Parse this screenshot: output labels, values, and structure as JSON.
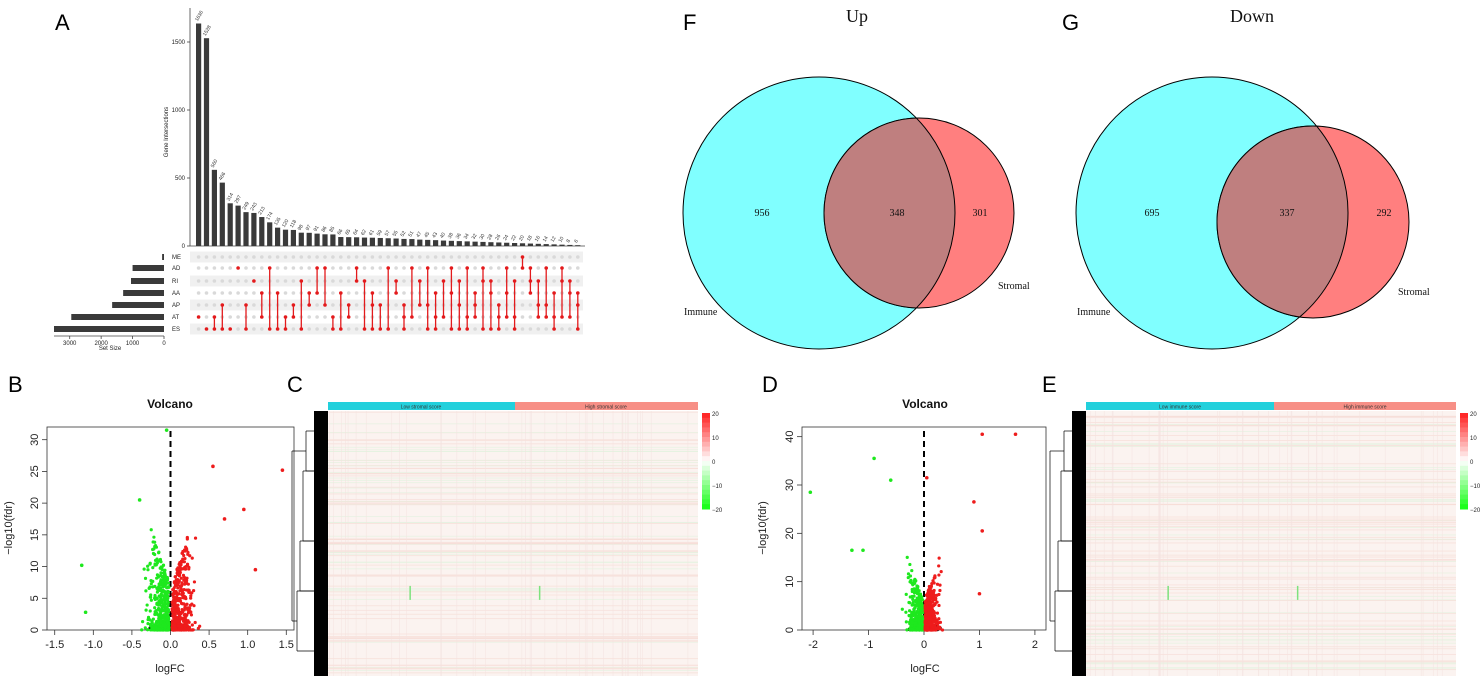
{
  "panel_letters": [
    "A",
    "B",
    "C",
    "D",
    "E",
    "F",
    "G"
  ],
  "chart_data": [
    {
      "id": "A",
      "type": "bar",
      "subtype": "upset",
      "ylabel": "Gene Intersections",
      "yticks": [
        0,
        500,
        1000,
        1500
      ],
      "ylim": [
        0,
        1750
      ],
      "intersection_values": [
        1636,
        1528,
        560,
        466,
        314,
        297,
        249,
        243,
        213,
        174,
        135,
        120,
        118,
        98,
        97,
        91,
        86,
        85,
        66,
        65,
        64,
        62,
        61,
        59,
        57,
        55,
        52,
        51,
        47,
        45,
        43,
        40,
        38,
        36,
        34,
        32,
        30,
        28,
        26,
        24,
        22,
        20,
        18,
        16,
        14,
        12,
        10,
        8,
        6
      ],
      "intersection_labels": [
        "1636",
        "1528",
        "560",
        "466",
        "314",
        "297",
        "249",
        "243",
        "213",
        "174",
        "135",
        "120",
        "118",
        "98",
        "97",
        "91",
        "86",
        "85",
        "66",
        "65",
        "64",
        "62",
        "61",
        "59",
        "57",
        "55",
        "52",
        "51",
        "47",
        "45",
        "43",
        "40",
        "38",
        "36",
        "34",
        "32",
        "30",
        "28",
        "26",
        "24",
        "22",
        "20",
        "18",
        "16",
        "14",
        "12",
        "10",
        "8",
        "6"
      ],
      "sets": [
        "ME",
        "AD",
        "RI",
        "AA",
        "AP",
        "AT",
        "ES"
      ],
      "set_sizes": [
        60,
        1000,
        1050,
        1300,
        1650,
        2950,
        3500
      ],
      "set_size_label": "Set Size",
      "set_size_ticks": [
        3000,
        2000,
        1000,
        0
      ],
      "set_size_tick_labels": [
        "3000",
        "2000",
        "1000",
        "0"
      ]
    },
    {
      "id": "B",
      "type": "scatter",
      "title": "Volcano",
      "xlabel": "logFC",
      "ylabel": "−log10(fdr)",
      "xlim": [
        -1.6,
        1.6
      ],
      "ylim": [
        0,
        32
      ],
      "xticks": [
        -1.5,
        -1.0,
        -0.5,
        0.0,
        0.5,
        1.0,
        1.5
      ],
      "xtick_labels": [
        "-1.5",
        "-1.0",
        "-0.5",
        "0.0",
        "0.5",
        "1.0",
        "1.5"
      ],
      "yticks": [
        0,
        5,
        10,
        15,
        20,
        25,
        30
      ],
      "ytick_labels": [
        "0",
        "5",
        "10",
        "15",
        "20",
        "25",
        "30"
      ],
      "outliers": [
        [
          -0.05,
          31.5
        ],
        [
          0.55,
          25.8
        ],
        [
          1.45,
          25.2
        ],
        [
          -1.15,
          10.2
        ],
        [
          -1.1,
          2.8
        ],
        [
          1.1,
          9.5
        ],
        [
          0.95,
          19
        ],
        [
          -0.4,
          20.5
        ],
        [
          0.7,
          17.5
        ]
      ]
    },
    {
      "id": "C",
      "type": "heatmap",
      "groups": [
        "Low stromal score",
        "High stromal score"
      ],
      "legend_ticks": [
        20,
        10,
        0,
        -10,
        -20
      ],
      "legend_tick_labels": [
        "20",
        "10",
        "0",
        "−10",
        "−20"
      ]
    },
    {
      "id": "D",
      "type": "scatter",
      "title": "Volcano",
      "xlabel": "logFC",
      "ylabel": "−log10(fdr)",
      "xlim": [
        -2.2,
        2.2
      ],
      "ylim": [
        0,
        42
      ],
      "xticks": [
        -2,
        -1,
        0,
        1,
        2
      ],
      "xtick_labels": [
        "-2",
        "-1",
        "0",
        "1",
        "2"
      ],
      "yticks": [
        0,
        10,
        20,
        30,
        40
      ],
      "ytick_labels": [
        "0",
        "10",
        "20",
        "30",
        "40"
      ],
      "outliers": [
        [
          1.05,
          40.5
        ],
        [
          1.65,
          40.5
        ],
        [
          -2.05,
          28.5
        ],
        [
          -0.9,
          35.5
        ],
        [
          -0.6,
          31
        ],
        [
          0.05,
          31.5
        ],
        [
          -1.3,
          16.5
        ],
        [
          -1.1,
          16.5
        ],
        [
          0.9,
          26.5
        ],
        [
          1.05,
          20.5
        ],
        [
          1.0,
          7.5
        ]
      ]
    },
    {
      "id": "E",
      "type": "heatmap",
      "groups": [
        "Low immune score",
        "High immune score"
      ],
      "legend_ticks": [
        20,
        10,
        0,
        -10,
        -20
      ],
      "legend_tick_labels": [
        "20",
        "10",
        "0",
        "−10",
        "−20"
      ]
    },
    {
      "id": "F",
      "type": "venn",
      "title": "Up",
      "sets": [
        "Immune",
        "Stromal"
      ],
      "only_a": 956,
      "intersection": 348,
      "only_b": 301,
      "labels": [
        "956",
        "348",
        "301"
      ]
    },
    {
      "id": "G",
      "type": "venn",
      "title": "Down",
      "sets": [
        "Immune",
        "Stromal"
      ],
      "only_a": 695,
      "intersection": 337,
      "only_b": 292,
      "labels": [
        "695",
        "337",
        "292"
      ]
    }
  ],
  "colors": {
    "bar": "#3a3a3a",
    "dot_active": "#e31a1c",
    "dot_inactive": "#d9d9d9",
    "up": "#ee1c1c",
    "down": "#1ee81e",
    "ns": "#000000",
    "venn_immune": "#80ffff",
    "venn_stromal": "#ff7f7f",
    "venn_overlap": "#bf7f7f",
    "heat_low_group": "#22d0dc",
    "heat_high_group": "#f78f86"
  }
}
